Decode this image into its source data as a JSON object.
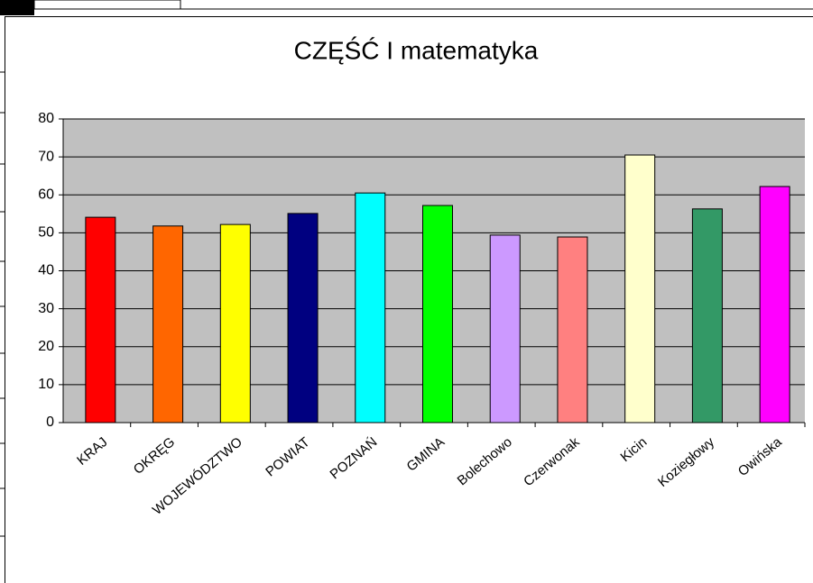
{
  "chart_data": {
    "type": "bar",
    "title": "CZĘŚĆ I matematyka",
    "categories": [
      "KRAJ",
      "OKRĘG",
      "WOJEWÓDZTWO",
      "POWIAT",
      "POZNAŃ",
      "GMINA",
      "Bolechowo",
      "Czerwonak",
      "Kicin",
      "Koziegłowy",
      "Owińska"
    ],
    "values": [
      54.1,
      51.8,
      52.2,
      55.1,
      60.5,
      57.2,
      49.4,
      48.9,
      70.5,
      56.3,
      62.2
    ],
    "colors": [
      "#ff0000",
      "#ff6600",
      "#ffff00",
      "#000080",
      "#00ffff",
      "#00ff00",
      "#cc99ff",
      "#ff8080",
      "#ffffcc",
      "#339966",
      "#ff00ff"
    ],
    "ylim": [
      0,
      80
    ],
    "yticks": [
      0,
      10,
      20,
      30,
      40,
      50,
      60,
      70,
      80
    ],
    "grid": true
  }
}
